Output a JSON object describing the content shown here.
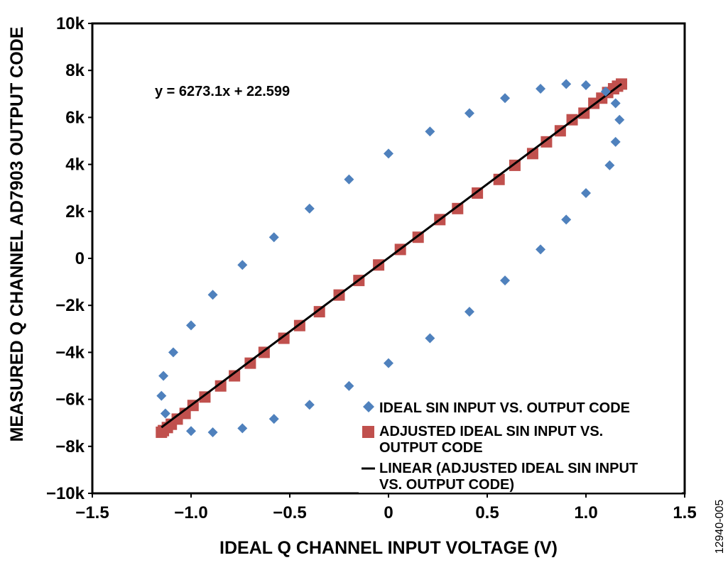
{
  "chart_data": {
    "type": "scatter",
    "xlabel": "IDEAL Q CHANNEL INPUT VOLTAGE (V)",
    "ylabel": "MEASURED Q CHANNEL AD7903 OUTPUT CODE",
    "xlim": [
      -1.5,
      1.5
    ],
    "ylim": [
      -10000,
      10000
    ],
    "x_ticks": [
      -1.5,
      -1.0,
      -0.5,
      0,
      0.5,
      1.0,
      1.5
    ],
    "x_tick_labels": [
      "−1.5",
      "−1.0",
      "−0.5",
      "0",
      "0.5",
      "1.0",
      "1.5"
    ],
    "y_ticks": [
      -10000,
      -8000,
      -6000,
      -4000,
      -2000,
      0,
      2000,
      4000,
      6000,
      8000,
      10000
    ],
    "y_tick_labels": [
      "−10k",
      "−8k",
      "−6k",
      "−4k",
      "−2k",
      "0",
      "2k",
      "4k",
      "6k",
      "8k",
      "10k"
    ],
    "grid": false,
    "legend_position": "bottom-right",
    "equation": "y = 6273.1x + 22.599",
    "figure_id": "12940-005",
    "series": [
      {
        "name": "IDEAL SIN INPUT VS. OUTPUT CODE",
        "marker": "diamond",
        "color": "#4f81bd",
        "points": [
          [
            -1.15,
            -5850
          ],
          [
            -1.14,
            -5000
          ],
          [
            -1.13,
            -6600
          ],
          [
            -1.09,
            -4000
          ],
          [
            -1.0,
            -2850
          ],
          [
            -1.0,
            -7350
          ],
          [
            -0.89,
            -1550
          ],
          [
            -0.89,
            -7400
          ],
          [
            -0.74,
            -280
          ],
          [
            -0.74,
            -7230
          ],
          [
            -0.58,
            900
          ],
          [
            -0.58,
            -6830
          ],
          [
            -0.4,
            2120
          ],
          [
            -0.4,
            -6230
          ],
          [
            -0.2,
            3360
          ],
          [
            -0.2,
            -5430
          ],
          [
            0.0,
            4460
          ],
          [
            0.0,
            -4460
          ],
          [
            0.21,
            5400
          ],
          [
            0.21,
            -3400
          ],
          [
            0.41,
            6180
          ],
          [
            0.41,
            -2270
          ],
          [
            0.59,
            6820
          ],
          [
            0.59,
            -940
          ],
          [
            0.77,
            7220
          ],
          [
            0.77,
            380
          ],
          [
            0.9,
            7420
          ],
          [
            0.9,
            1650
          ],
          [
            1.0,
            7370
          ],
          [
            1.0,
            2780
          ],
          [
            1.1,
            7100
          ],
          [
            1.12,
            3960
          ],
          [
            1.15,
            6600
          ],
          [
            1.15,
            4960
          ],
          [
            1.17,
            5900
          ]
        ]
      },
      {
        "name": "ADJUSTED IDEAL SIN INPUT VS. OUTPUT CODE",
        "marker": "square",
        "color": "#c0504d",
        "points": [
          [
            -1.15,
            -7400
          ],
          [
            -1.14,
            -7330
          ],
          [
            -1.12,
            -7200
          ],
          [
            -1.1,
            -7060
          ],
          [
            -1.07,
            -6840
          ],
          [
            -1.03,
            -6600
          ],
          [
            -0.99,
            -6260
          ],
          [
            -0.93,
            -5900
          ],
          [
            -0.85,
            -5430
          ],
          [
            -0.78,
            -5000
          ],
          [
            -0.7,
            -4460
          ],
          [
            -0.63,
            -4000
          ],
          [
            -0.53,
            -3400
          ],
          [
            -0.45,
            -2860
          ],
          [
            -0.35,
            -2270
          ],
          [
            -0.25,
            -1560
          ],
          [
            -0.15,
            -940
          ],
          [
            -0.05,
            -280
          ],
          [
            0.06,
            380
          ],
          [
            0.15,
            900
          ],
          [
            0.26,
            1650
          ],
          [
            0.35,
            2120
          ],
          [
            0.45,
            2780
          ],
          [
            0.56,
            3360
          ],
          [
            0.64,
            3960
          ],
          [
            0.73,
            4460
          ],
          [
            0.8,
            4960
          ],
          [
            0.87,
            5430
          ],
          [
            0.93,
            5900
          ],
          [
            0.99,
            6180
          ],
          [
            1.04,
            6600
          ],
          [
            1.08,
            6820
          ],
          [
            1.11,
            7060
          ],
          [
            1.14,
            7220
          ],
          [
            1.16,
            7330
          ],
          [
            1.18,
            7420
          ]
        ]
      },
      {
        "name": "LINEAR (ADJUSTED IDEAL SIN INPUT VS. OUTPUT CODE)",
        "marker": "line",
        "color": "#000000",
        "points": [
          [
            -1.15,
            -7191
          ],
          [
            1.18,
            7425
          ]
        ]
      }
    ]
  }
}
